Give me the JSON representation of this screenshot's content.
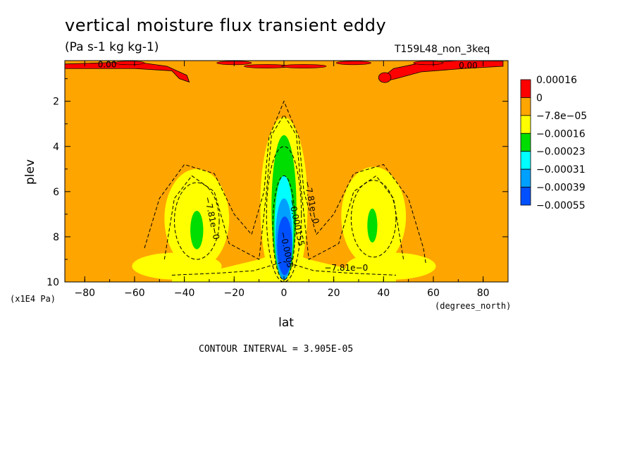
{
  "chart_data": {
    "type": "contour",
    "title": "vertical moisture flux transient eddy",
    "subtitle": "(Pa s-1 kg kg-1)",
    "run_id": "T159L48_non_3keq",
    "xlabel": "lat",
    "x_units": "(degrees_north)",
    "ylabel": "plev",
    "y_units": "(x1E4 Pa)",
    "xlim": [
      -88,
      90
    ],
    "ylim": [
      10,
      0.2
    ],
    "x_ticks": [
      -80,
      -60,
      -40,
      -20,
      0,
      20,
      40,
      60,
      80
    ],
    "y_ticks": [
      2,
      4,
      6,
      8,
      10
    ],
    "x_tick_labels": [
      "−80",
      "−60",
      "−40",
      "−20",
      "0",
      "20",
      "40",
      "60",
      "80"
    ],
    "y_tick_labels": [
      "2",
      "4",
      "6",
      "8",
      "10"
    ],
    "contour_interval_text": "CONTOUR INTERVAL = 3.905E-05",
    "legend": {
      "labels": [
        "0.00016",
        "0",
        "−7.8e−05",
        "−0.00016",
        "−0.00023",
        "−0.00031",
        "−0.00039",
        "−0.00055"
      ],
      "colors": [
        "#ff0000",
        "#ffa500",
        "#ffff00",
        "#00dd00",
        "#00ffff",
        "#00a0ff",
        "#0050ff"
      ]
    },
    "contour_labels": [
      {
        "text": "0.00",
        "lat": -71,
        "plev": 0.5
      },
      {
        "text": "0.00",
        "lat": 74,
        "plev": 0.55
      },
      {
        "text": "−7.81e−0",
        "lat": -30,
        "plev": 7.2
      },
      {
        "text": "−7.81e−0",
        "lat": 10,
        "plev": 6.5
      },
      {
        "text": "−0.000155",
        "lat": 4,
        "plev": 7.4
      },
      {
        "text": "−0.0003",
        "lat": 0,
        "plev": 8.6
      },
      {
        "text": "−7.81e−0",
        "lat": 25,
        "plev": 9.5
      }
    ],
    "fields": {
      "background_value": 0,
      "positive_band_levels": [
        0.00016
      ],
      "features": [
        {
          "name": "equatorial minimum",
          "lat": 0,
          "plev": 8.5,
          "min_value": -0.00055
        },
        {
          "name": "southern subtropical minimum",
          "lat": -35,
          "plev": 7.6,
          "min_value": -0.00023
        },
        {
          "name": "northern subtropical minimum",
          "lat": 35,
          "plev": 7.5,
          "min_value": -0.00023
        }
      ]
    }
  }
}
